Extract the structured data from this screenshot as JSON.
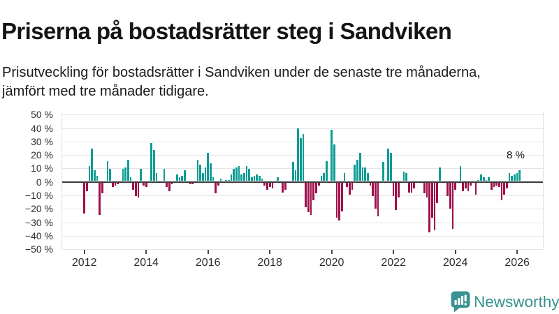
{
  "header": {
    "title": "Priserna på bostadsrätter steg i Sandviken",
    "subtitle": "Prisutveckling för bostadsrätter i Sandviken under de senaste tre månaderna, jämfört med tre månader tidigare."
  },
  "chart_data": {
    "type": "bar",
    "title": "Priserna på bostadsrätter steg i Sandviken",
    "unit": "%",
    "frequency": "monthly",
    "start_month": "2012-01",
    "end_month": "2026-02",
    "ylim": [
      -50,
      50
    ],
    "grid": true,
    "legend": false,
    "ytick_values": [
      50,
      40,
      30,
      20,
      10,
      0,
      -10,
      -20,
      -30,
      -40,
      -50
    ],
    "ytick_labels": [
      "50 %",
      "40 %",
      "30 %",
      "20 %",
      "10 %",
      "0 %",
      "−10 %",
      "−20 %",
      "−30 %",
      "−40 %",
      "−50 %"
    ],
    "xtick_labels": [
      "2012",
      "2014",
      "2016",
      "2018",
      "2020",
      "2022",
      "2024",
      "2026"
    ],
    "annotation": {
      "text": "8 %",
      "month": "2026-02",
      "value": 8
    },
    "colors": {
      "positive": "#0d9c94",
      "negative": "#9e104c"
    },
    "values": [
      -23,
      -6,
      11,
      24,
      8,
      4,
      -24,
      -8,
      0,
      15,
      9,
      -3,
      -2,
      -1,
      0,
      9,
      10,
      16,
      3,
      -5,
      -10,
      -11,
      9,
      -2,
      -3,
      0,
      28,
      23,
      6,
      0,
      0,
      9,
      -3,
      -6,
      -1,
      0,
      5,
      3,
      4,
      8,
      0,
      -1,
      -1,
      0,
      16,
      12,
      6,
      10,
      21,
      13,
      3,
      -8,
      -2,
      2,
      0,
      1,
      1,
      5,
      9,
      10,
      11,
      5,
      6,
      11,
      9,
      3,
      4,
      5,
      4,
      2,
      -2,
      -5,
      -3,
      -4,
      0,
      3,
      0,
      -7,
      -5,
      0,
      0,
      14,
      8,
      39,
      32,
      35,
      -18,
      -22,
      -24,
      -13,
      -8,
      -2,
      4,
      6,
      15,
      0,
      38,
      27,
      -26,
      -28,
      -21,
      6,
      -3,
      -9,
      -5,
      12,
      16,
      21,
      10,
      10,
      6,
      -2,
      -10,
      -19,
      -25,
      0,
      14,
      0,
      24,
      21,
      -10,
      -20,
      -11,
      0,
      7,
      6,
      -7,
      -7,
      -4,
      0,
      0,
      0,
      -8,
      -11,
      -37,
      -26,
      -35,
      -15,
      10,
      0,
      0,
      -10,
      -19,
      -34,
      -5,
      0,
      11,
      -6,
      -4,
      -6,
      -2,
      0,
      -9,
      1,
      5,
      3,
      1,
      3,
      -5,
      -3,
      -2,
      -3,
      -13,
      -9,
      -4,
      6,
      4,
      5,
      6,
      8
    ]
  },
  "footer": {
    "brand": "Newsworthy"
  }
}
